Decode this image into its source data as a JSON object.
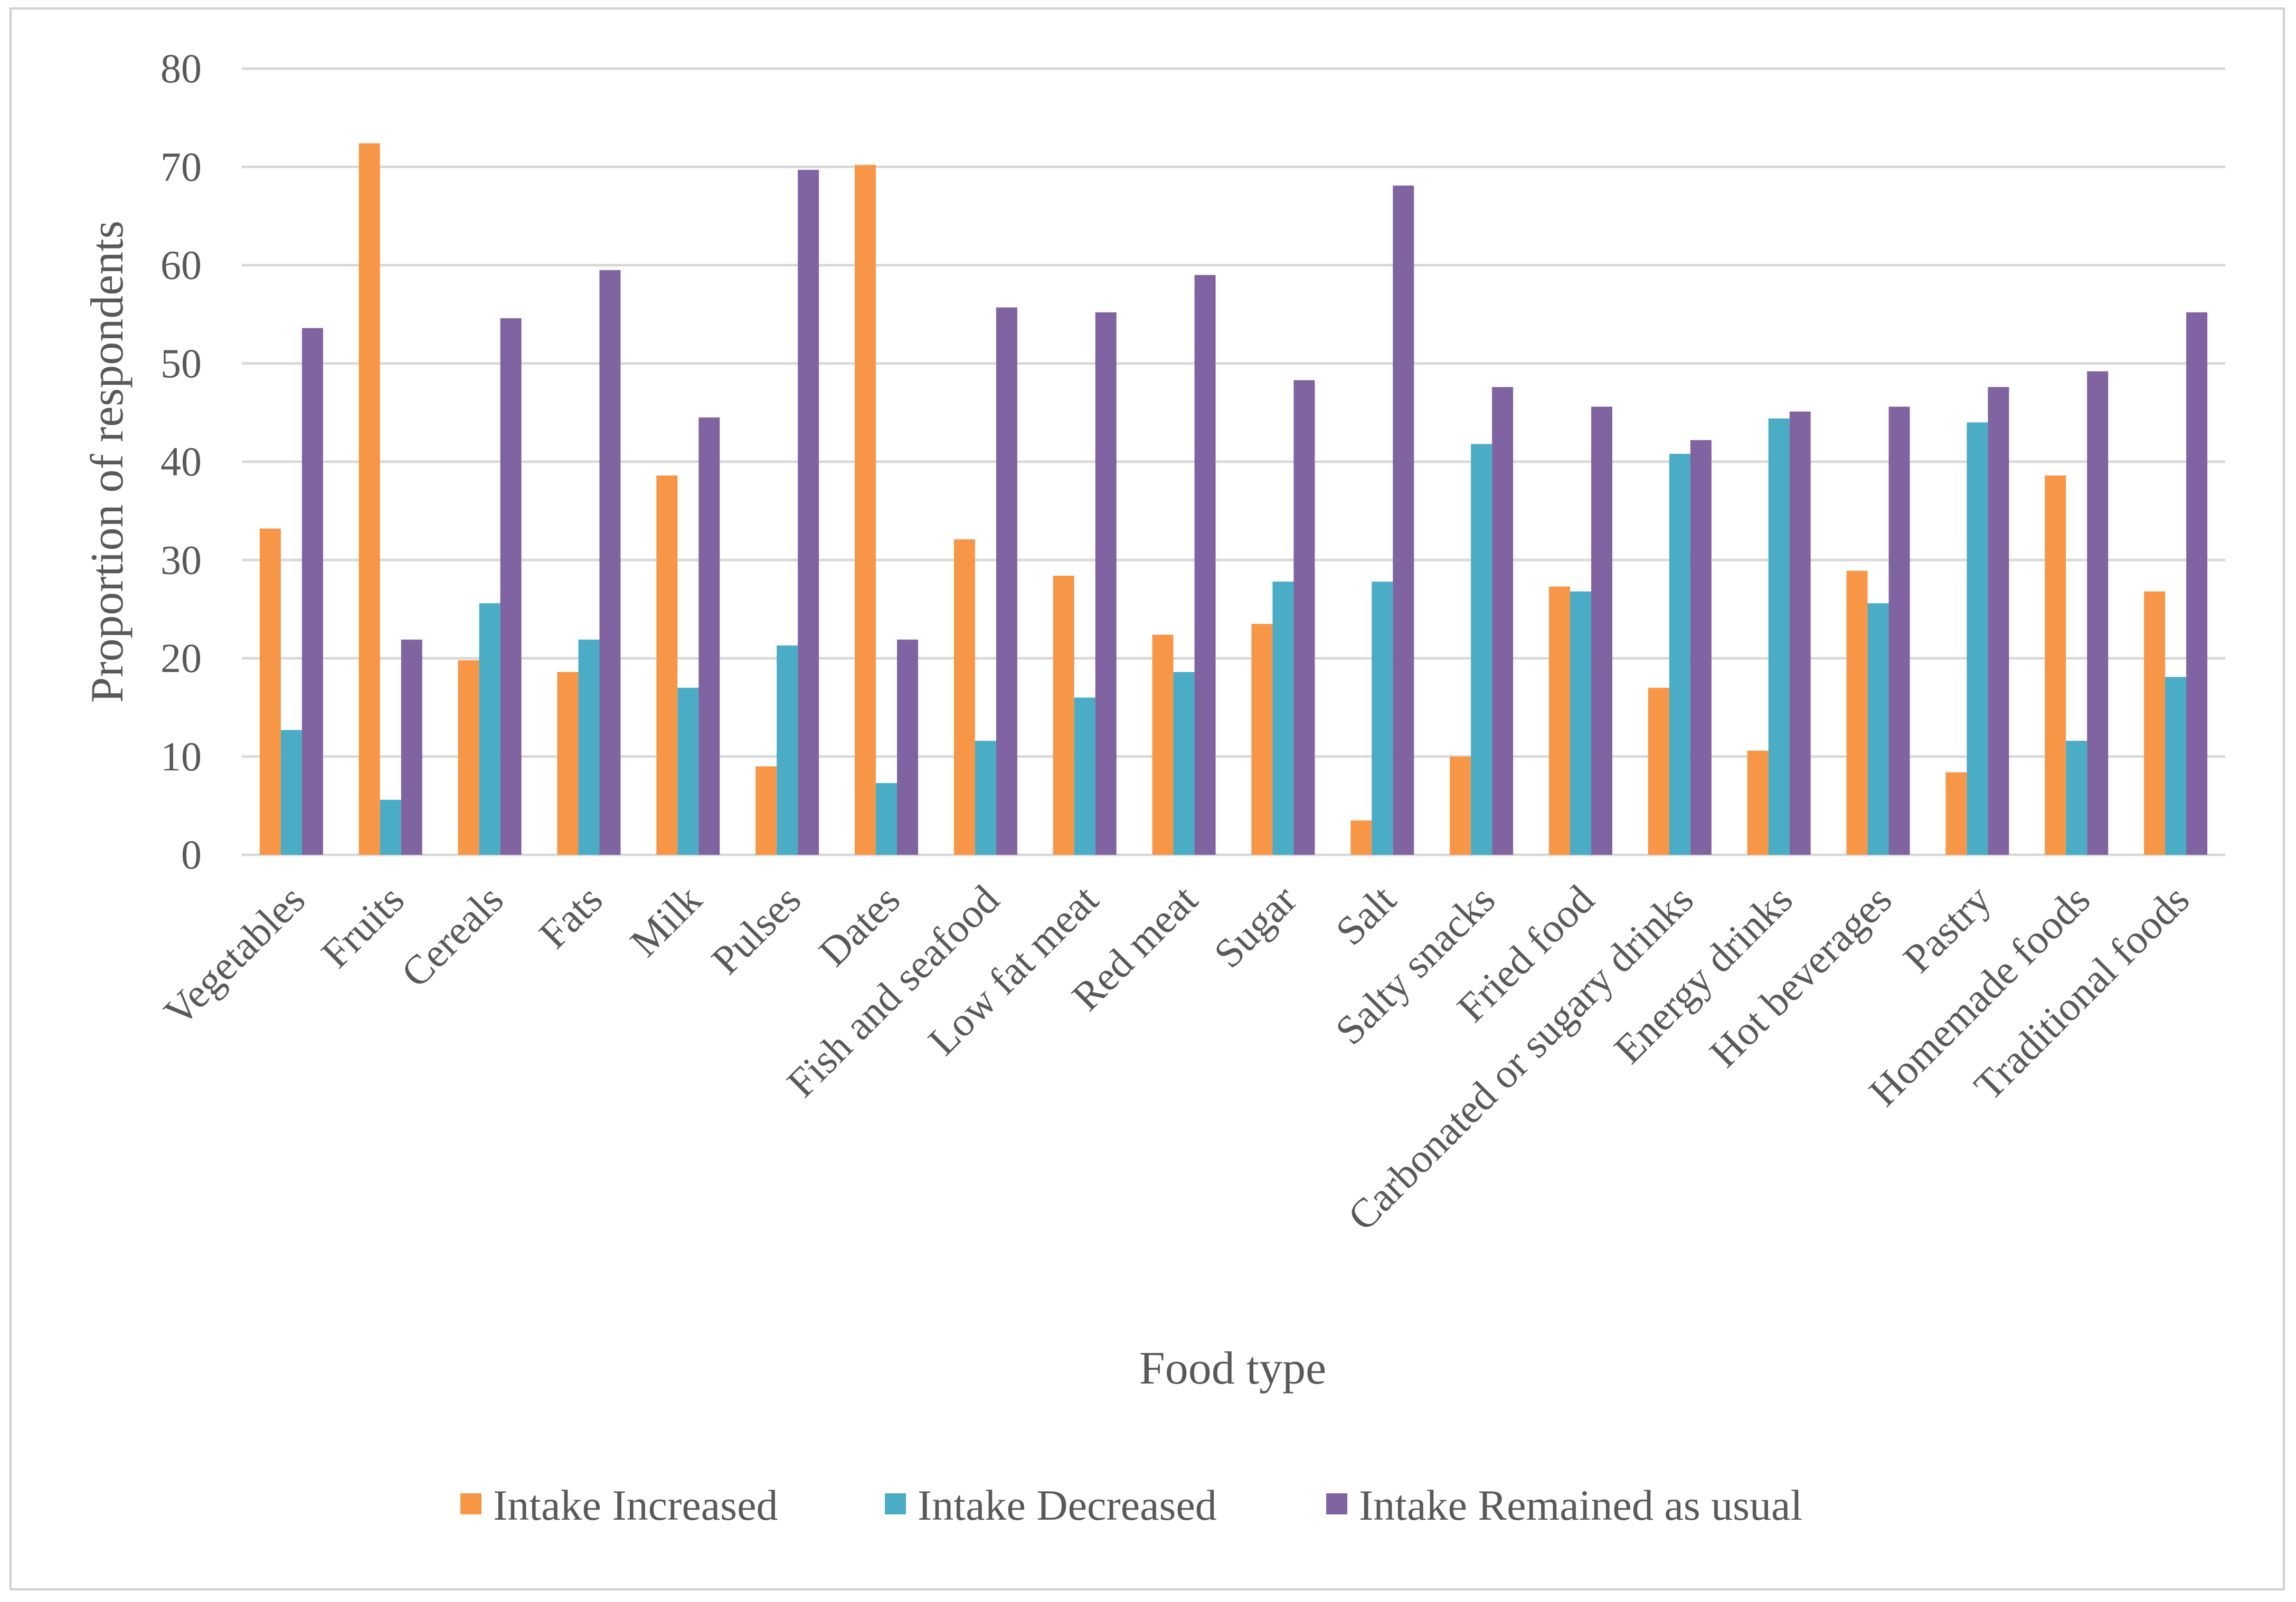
{
  "chart_data": {
    "type": "bar",
    "title": "",
    "xlabel": "Food type",
    "ylabel": "Proportion of respondents",
    "ylim": [
      0,
      80
    ],
    "yticks": [
      0,
      10,
      20,
      30,
      40,
      50,
      60,
      70,
      80
    ],
    "grid": true,
    "legend_position": "bottom",
    "categories": [
      "Vegetables",
      "Fruits",
      "Cereals",
      "Fats",
      "Milk",
      "Pulses",
      "Dates",
      "Fish and seafood",
      "Low fat meat",
      "Red meat",
      "Sugar",
      "Salt",
      "Salty snacks",
      "Fried food",
      "Carbonated or sugary drinks",
      "Energy drinks",
      "Hot beverages",
      "Pastry",
      "Homemade foods",
      "Traditional foods"
    ],
    "series": [
      {
        "name": "Intake Increased",
        "color": "#f79646",
        "values": [
          33.2,
          72.4,
          19.8,
          18.6,
          38.6,
          9.0,
          70.2,
          32.1,
          28.4,
          22.4,
          23.5,
          3.5,
          10.0,
          27.3,
          17.0,
          10.6,
          28.9,
          8.4,
          38.6,
          26.8
        ]
      },
      {
        "name": "Intake Decreased",
        "color": "#4bacc6",
        "values": [
          12.7,
          5.6,
          25.6,
          21.9,
          17.0,
          21.3,
          7.3,
          11.6,
          16.0,
          18.6,
          27.8,
          27.8,
          41.8,
          26.8,
          40.8,
          44.4,
          25.6,
          44.0,
          11.6,
          18.1
        ]
      },
      {
        "name": "Intake Remained as usual",
        "color": "#8064a2",
        "values": [
          53.6,
          21.9,
          54.6,
          59.5,
          44.5,
          69.7,
          21.9,
          55.7,
          55.2,
          59.0,
          48.3,
          68.1,
          47.6,
          45.6,
          42.2,
          45.1,
          45.6,
          47.6,
          49.2,
          55.2
        ]
      }
    ]
  }
}
